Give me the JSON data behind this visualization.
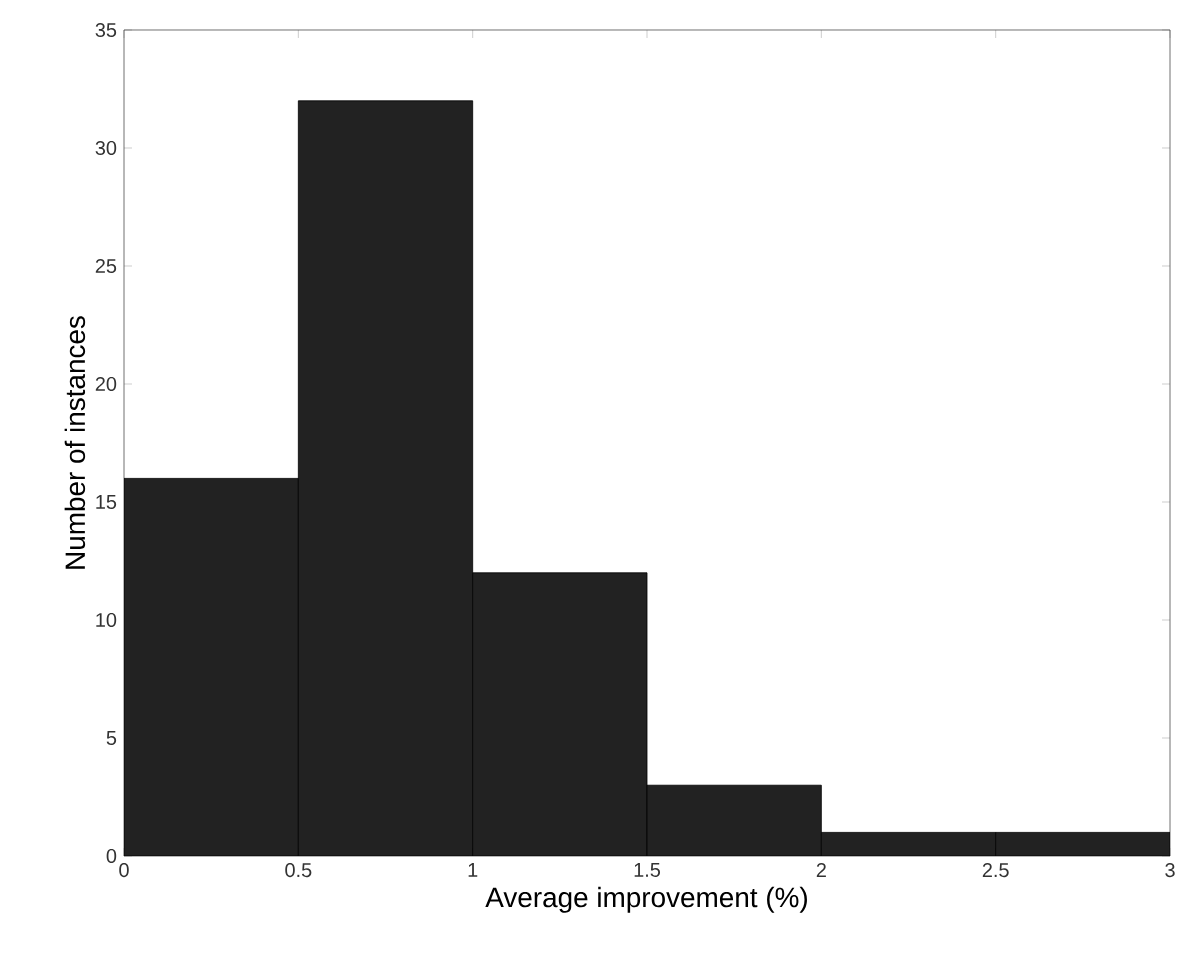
{
  "chart_data": {
    "type": "histogram",
    "xlabel": "Average improvement (%)",
    "ylabel": "Number of instances",
    "bins": [
      0,
      0.5,
      1,
      1.5,
      2,
      2.5,
      3
    ],
    "values": [
      16,
      32,
      12,
      3,
      1,
      1
    ],
    "color": "#222222",
    "xlim": [
      0,
      3
    ],
    "ylim": [
      0,
      35
    ],
    "xticks": [
      0,
      0.5,
      1,
      1.5,
      2,
      2.5,
      3
    ],
    "yticks": [
      0,
      5,
      10,
      15,
      20,
      25,
      30,
      35
    ]
  }
}
